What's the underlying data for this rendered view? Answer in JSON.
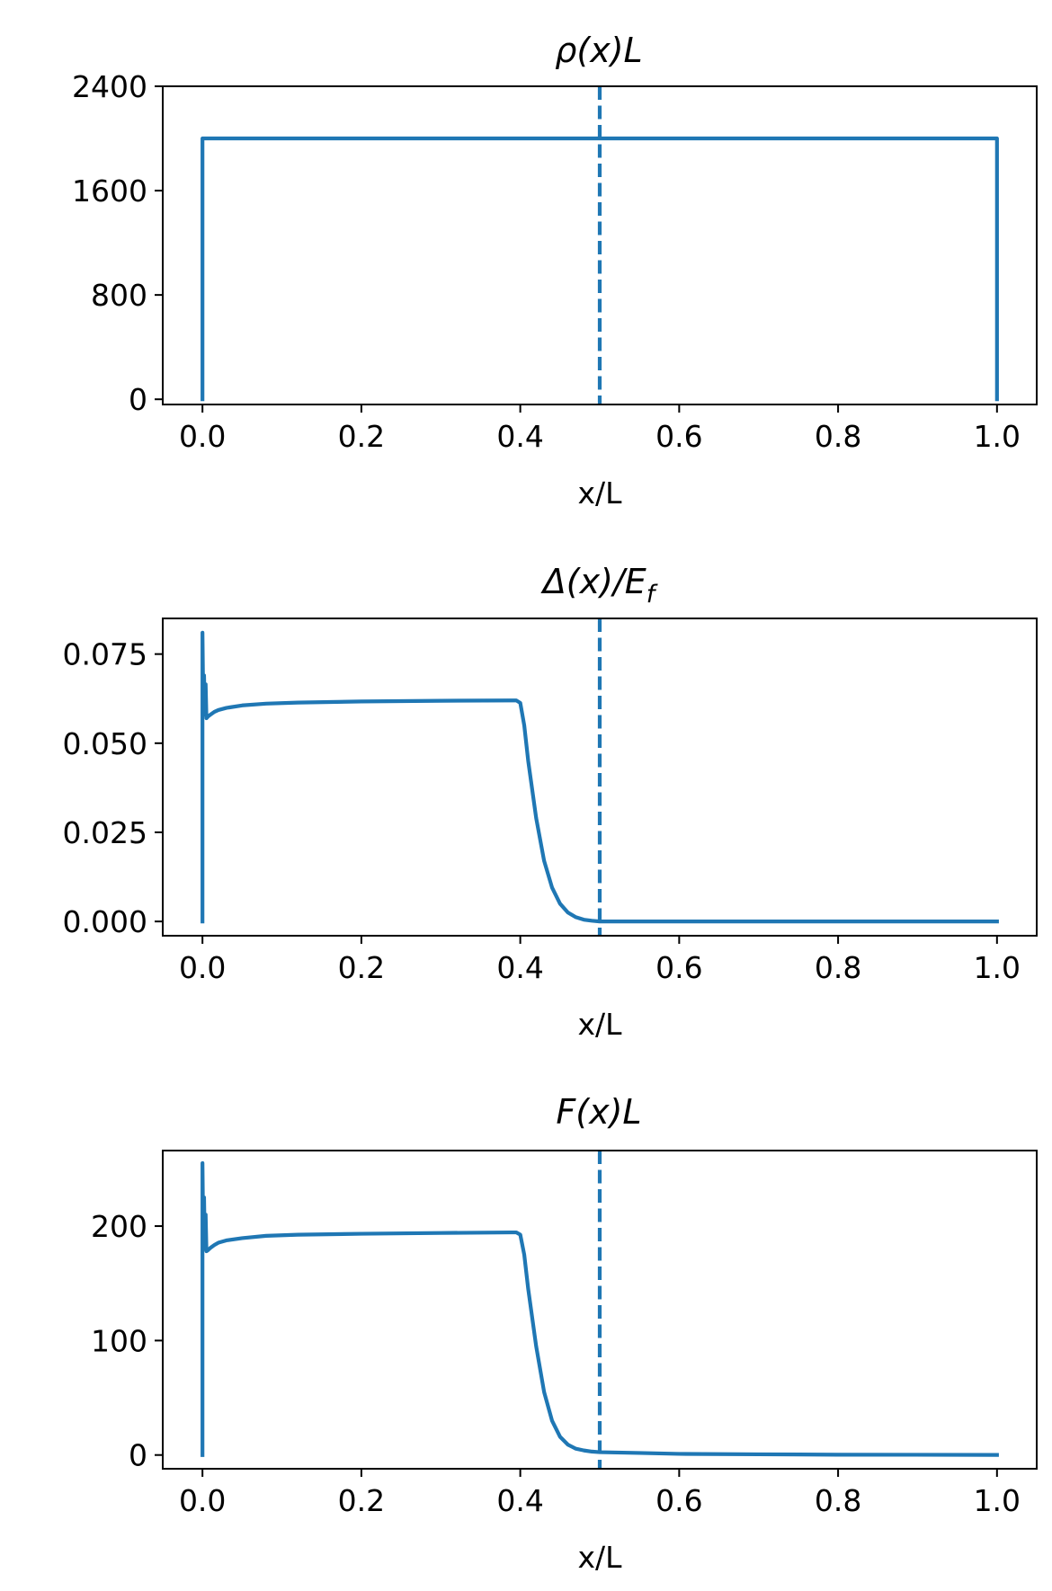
{
  "chart_data": [
    {
      "type": "line",
      "title": "ρ(x)L",
      "xlabel": "x/L",
      "ylabel": "",
      "xlim": [
        -0.05,
        1.05
      ],
      "ylim": [
        -40,
        2400
      ],
      "xticks": [
        0.0,
        0.2,
        0.4,
        0.6,
        0.8,
        1.0
      ],
      "xtick_labels": [
        "0.0",
        "0.2",
        "0.4",
        "0.6",
        "0.8",
        "1.0"
      ],
      "yticks": [
        0,
        800,
        1600,
        2400
      ],
      "ytick_labels": [
        "0",
        "800",
        "1600",
        "2400"
      ],
      "grid": false,
      "color": "#1f77b4",
      "vline": {
        "x": 0.5,
        "style": "dashed"
      },
      "series": [
        {
          "x": [
            0.0,
            0.0,
            0.5,
            1.0,
            1.0
          ],
          "y": [
            0,
            2000,
            2000,
            2000,
            0
          ]
        }
      ]
    },
    {
      "type": "line",
      "title": "Δ(x)/E_f",
      "title_parts": {
        "base": "Δ(x)/E",
        "sub": "f"
      },
      "xlabel": "x/L",
      "ylabel": "",
      "xlim": [
        -0.05,
        1.05
      ],
      "ylim": [
        -0.004,
        0.085
      ],
      "xticks": [
        0.0,
        0.2,
        0.4,
        0.6,
        0.8,
        1.0
      ],
      "xtick_labels": [
        "0.0",
        "0.2",
        "0.4",
        "0.6",
        "0.8",
        "1.0"
      ],
      "yticks": [
        0.0,
        0.025,
        0.05,
        0.075
      ],
      "ytick_labels": [
        "0.000",
        "0.025",
        "0.050",
        "0.075"
      ],
      "grid": false,
      "color": "#1f77b4",
      "vline": {
        "x": 0.5,
        "style": "dashed"
      },
      "series": [
        {
          "x": [
            0.0,
            0.0,
            0.001,
            0.002,
            0.003,
            0.004,
            0.005,
            0.007,
            0.01,
            0.015,
            0.02,
            0.03,
            0.05,
            0.08,
            0.12,
            0.2,
            0.3,
            0.39,
            0.395,
            0.4,
            0.405,
            0.41,
            0.42,
            0.43,
            0.44,
            0.45,
            0.46,
            0.47,
            0.48,
            0.49,
            0.5,
            0.55,
            0.6,
            0.8,
            1.0
          ],
          "y": [
            0.0,
            0.081,
            0.061,
            0.069,
            0.058,
            0.0665,
            0.057,
            0.0575,
            0.058,
            0.0588,
            0.0593,
            0.0599,
            0.0606,
            0.0611,
            0.0614,
            0.0617,
            0.0619,
            0.062,
            0.062,
            0.0613,
            0.055,
            0.045,
            0.029,
            0.017,
            0.0095,
            0.005,
            0.0025,
            0.0012,
            0.0005,
            0.0002,
            0.0,
            0.0,
            0.0,
            0.0,
            0.0
          ]
        }
      ]
    },
    {
      "type": "line",
      "title": "F(x)L",
      "xlabel": "x/L",
      "ylabel": "",
      "xlim": [
        -0.05,
        1.05
      ],
      "ylim": [
        -12,
        266
      ],
      "xticks": [
        0.0,
        0.2,
        0.4,
        0.6,
        0.8,
        1.0
      ],
      "xtick_labels": [
        "0.0",
        "0.2",
        "0.4",
        "0.6",
        "0.8",
        "1.0"
      ],
      "yticks": [
        0,
        100,
        200
      ],
      "ytick_labels": [
        "0",
        "100",
        "200"
      ],
      "grid": false,
      "color": "#1f77b4",
      "vline": {
        "x": 0.5,
        "style": "dashed"
      },
      "series": [
        {
          "x": [
            0.0,
            0.0,
            0.001,
            0.002,
            0.003,
            0.004,
            0.005,
            0.007,
            0.01,
            0.015,
            0.02,
            0.03,
            0.05,
            0.08,
            0.12,
            0.2,
            0.3,
            0.39,
            0.395,
            0.4,
            0.405,
            0.41,
            0.42,
            0.43,
            0.44,
            0.45,
            0.46,
            0.47,
            0.48,
            0.49,
            0.5,
            0.55,
            0.6,
            0.7,
            0.8,
            1.0
          ],
          "y": [
            0,
            255,
            190,
            225,
            180,
            210,
            178,
            179,
            181,
            183.5,
            185.5,
            187.5,
            189.5,
            191.5,
            192.5,
            193.3,
            194,
            194.5,
            194.5,
            192.5,
            175,
            145,
            95,
            55,
            30,
            16,
            9,
            5.5,
            4,
            3,
            2.5,
            1.8,
            1.0,
            0.6,
            0.3,
            0.1
          ]
        }
      ]
    }
  ]
}
